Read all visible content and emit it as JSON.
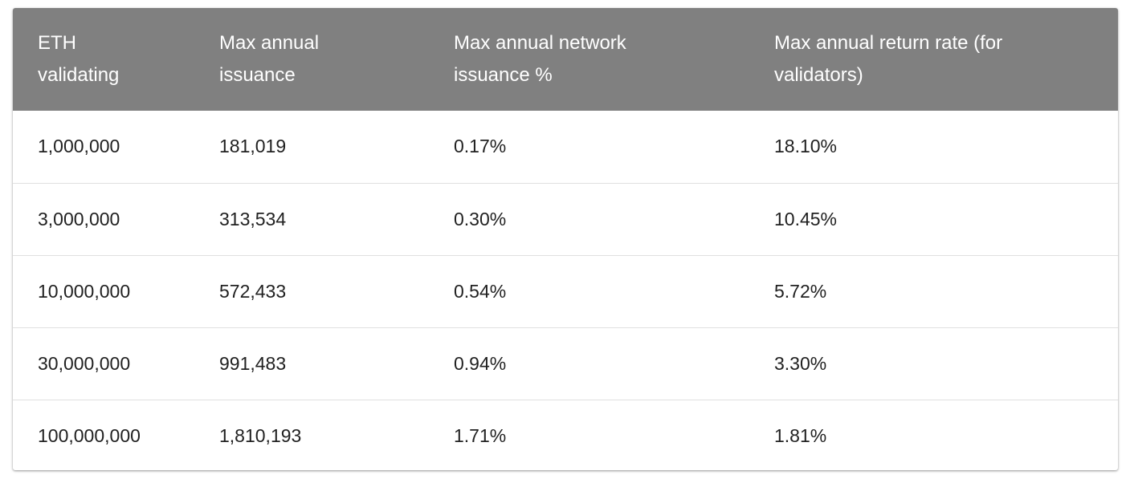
{
  "table": {
    "headers": [
      "ETH validating",
      "Max annual issuance",
      "Max annual network issuance %",
      "Max annual return rate (for validators)"
    ],
    "header_lines": [
      [
        "ETH",
        "validating"
      ],
      [
        "Max annual",
        "issuance"
      ],
      [
        "Max annual network",
        "issuance %"
      ],
      [
        "Max annual return rate (for",
        "validators)"
      ]
    ],
    "rows": [
      [
        "1,000,000",
        "181,019",
        "0.17%",
        "18.10%"
      ],
      [
        "3,000,000",
        "313,534",
        "0.30%",
        "10.45%"
      ],
      [
        "10,000,000",
        "572,433",
        "0.54%",
        "5.72%"
      ],
      [
        "30,000,000",
        "991,483",
        "0.94%",
        "3.30%"
      ],
      [
        "100,000,000",
        "1,810,193",
        "1.71%",
        "1.81%"
      ]
    ]
  },
  "colors": {
    "header_background": "#808080",
    "header_text": "#ffffff",
    "body_text": "#212121",
    "row_divider": "#e0e0e0"
  }
}
